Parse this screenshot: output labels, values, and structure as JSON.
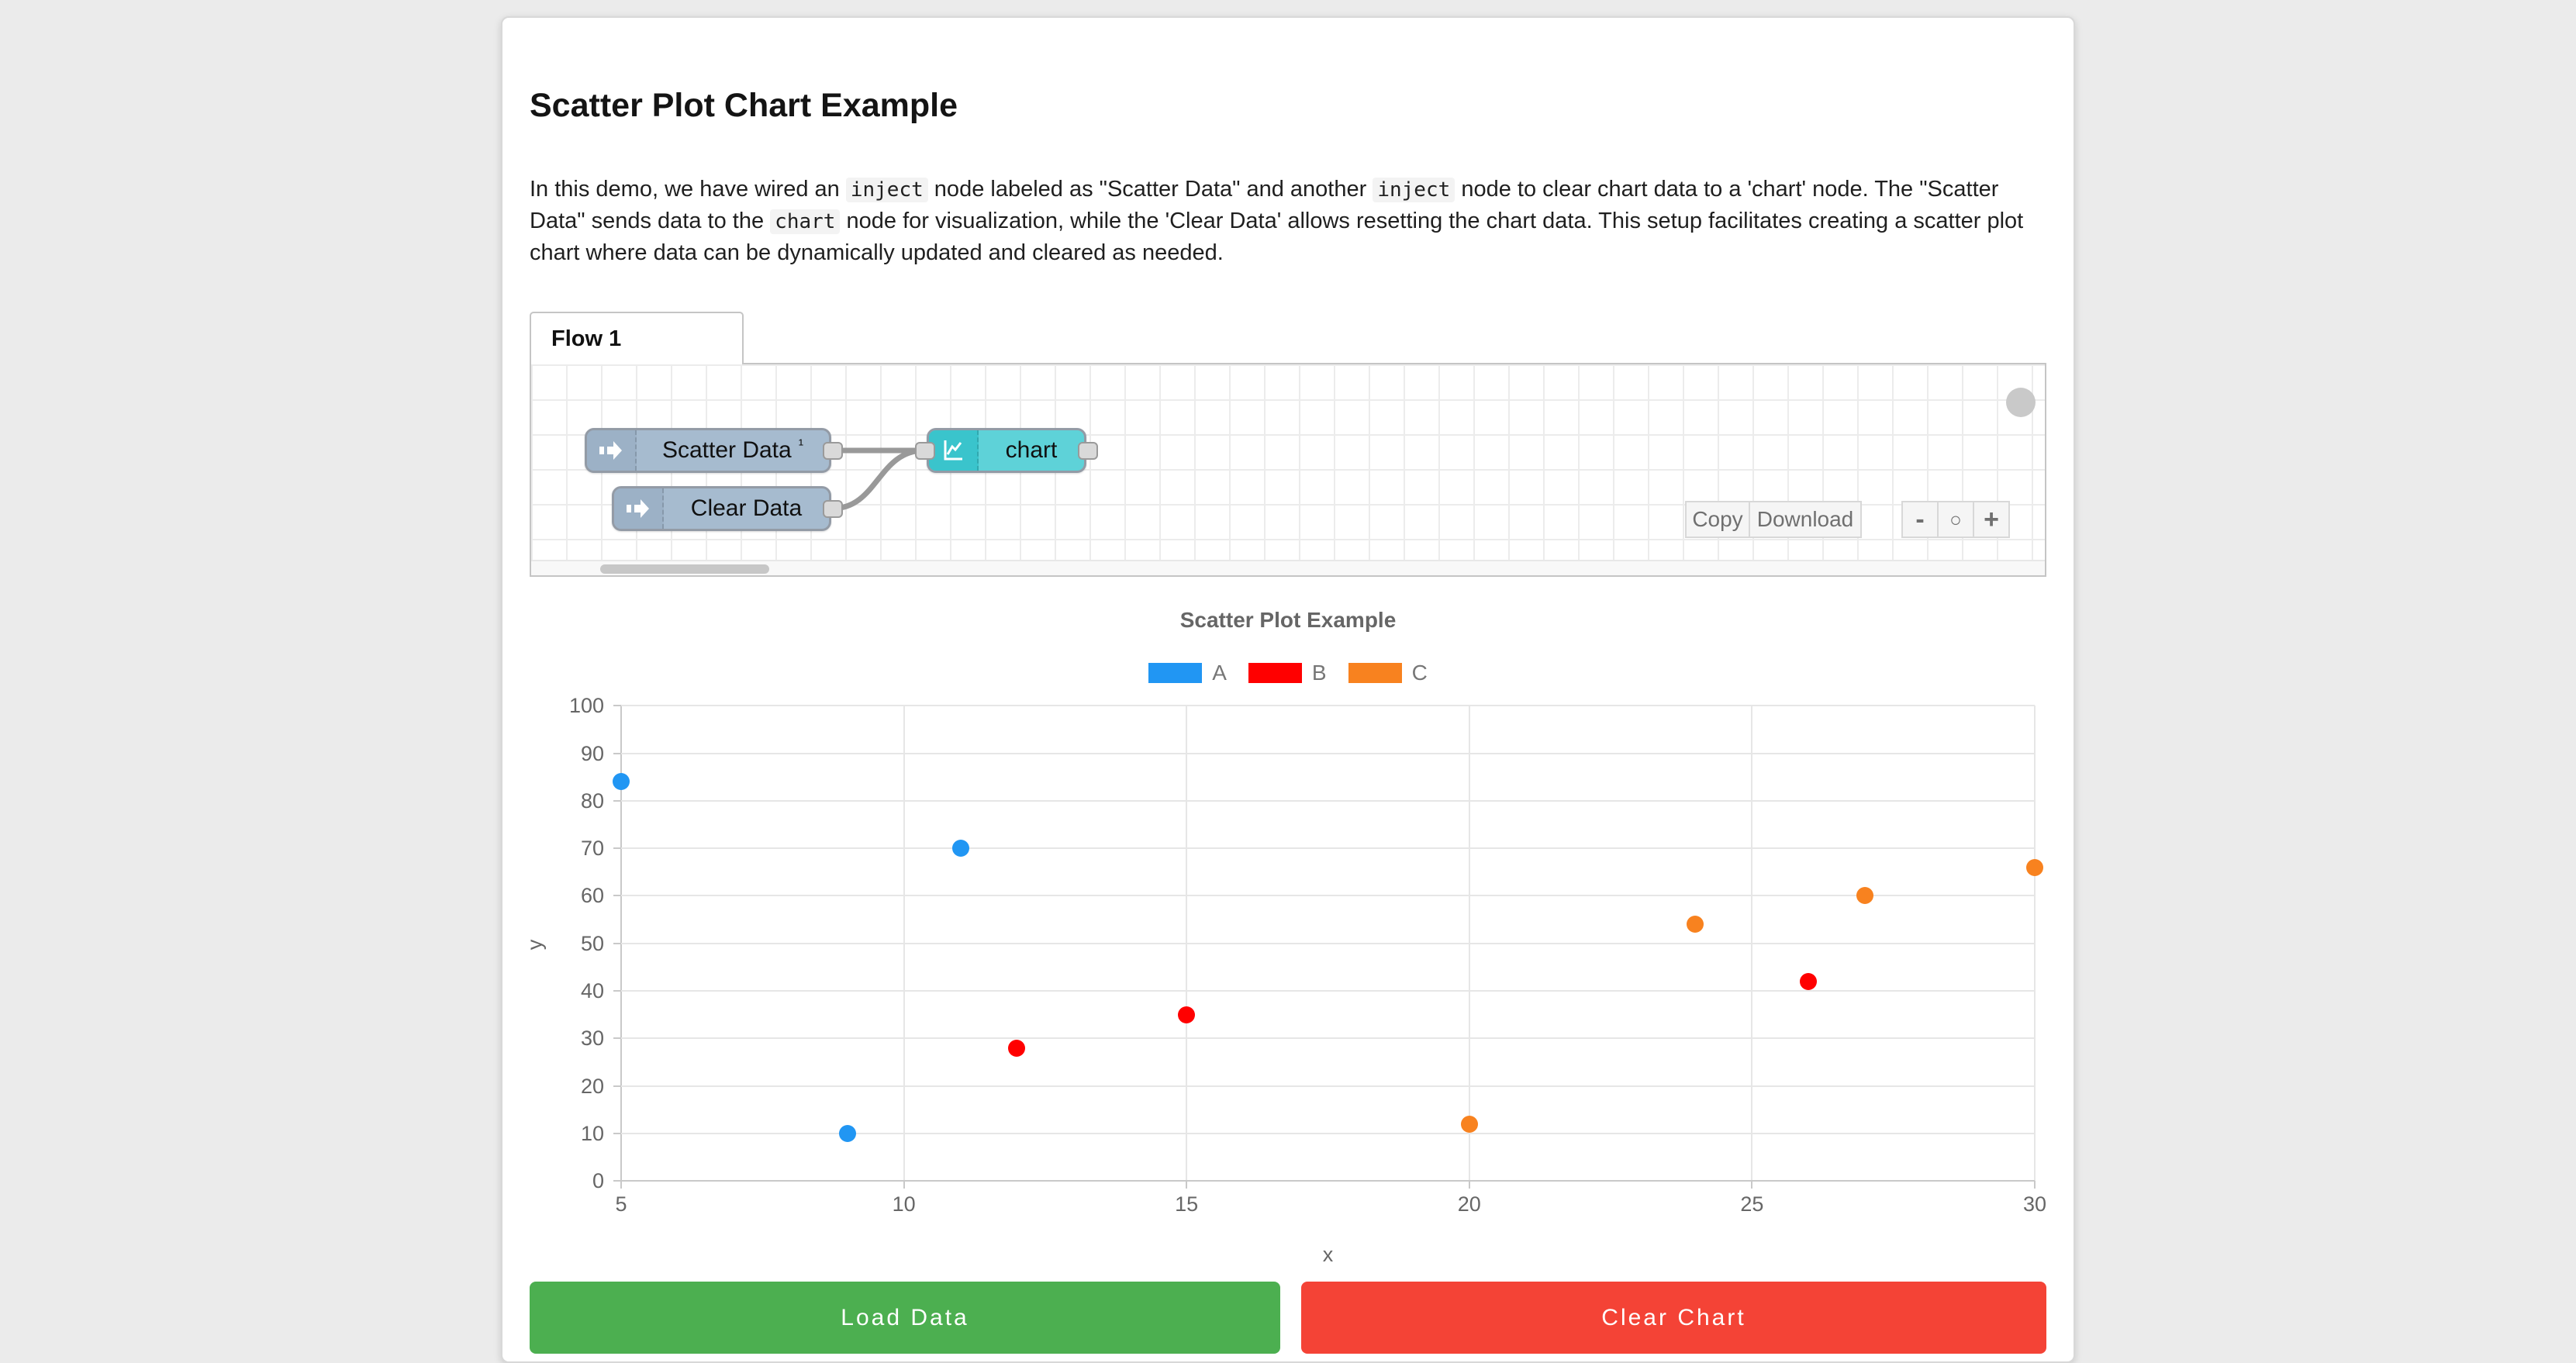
{
  "page": {
    "title": "Scatter Plot Chart Example"
  },
  "intro": {
    "runs": [
      {
        "text": "In this demo, we have wired an ",
        "code": false
      },
      {
        "text": "inject",
        "code": true
      },
      {
        "text": " node labeled as \"Scatter Data\" and another ",
        "code": false
      },
      {
        "text": "inject",
        "code": true
      },
      {
        "text": " node to clear chart data to a 'chart' node. The \"Scatter Data\" sends data to the ",
        "code": false
      },
      {
        "text": "chart",
        "code": true
      },
      {
        "text": " node for visualization, while the 'Clear Data' allows resetting the chart data. This setup facilitates creating a scatter plot chart where data can be dynamically updated and cleared as needed.",
        "code": false
      }
    ]
  },
  "flow": {
    "tab_label": "Flow 1",
    "nodes": [
      {
        "label": "Scatter Data",
        "badge": "¹",
        "type": "inject"
      },
      {
        "label": "Clear Data",
        "badge": "",
        "type": "inject"
      },
      {
        "label": "chart",
        "badge": "",
        "type": "chart"
      }
    ],
    "toolbar": {
      "copy_label": "Copy",
      "download_label": "Download"
    },
    "zoom_controls": {
      "zoom_out": "-",
      "zoom_reset": "○",
      "zoom_in": "+"
    },
    "node_colors": {
      "inject": "#a6bbcf",
      "chart": "#5ed2d8"
    }
  },
  "chart_data": {
    "type": "scatter",
    "title": "Scatter Plot Example",
    "xlabel": "x",
    "ylabel": "y",
    "xlim": [
      5,
      30
    ],
    "ylim": [
      0,
      100
    ],
    "x_ticks": [
      5,
      10,
      15,
      20,
      25,
      30
    ],
    "y_ticks": [
      0,
      10,
      20,
      30,
      40,
      50,
      60,
      70,
      80,
      90,
      100
    ],
    "grid": true,
    "legend_position": "top",
    "series": [
      {
        "name": "A",
        "color": "#2196f3",
        "points": [
          [
            5,
            84
          ],
          [
            9,
            10
          ],
          [
            11,
            70
          ]
        ]
      },
      {
        "name": "B",
        "color": "#ff0000",
        "points": [
          [
            12,
            28
          ],
          [
            15,
            35
          ],
          [
            26,
            42
          ]
        ]
      },
      {
        "name": "C",
        "color": "#f8821f",
        "points": [
          [
            20,
            12
          ],
          [
            24,
            54
          ],
          [
            27,
            60
          ],
          [
            30,
            66
          ]
        ]
      }
    ]
  },
  "actions": {
    "load_label": "Load Data",
    "clear_label": "Clear Chart"
  }
}
